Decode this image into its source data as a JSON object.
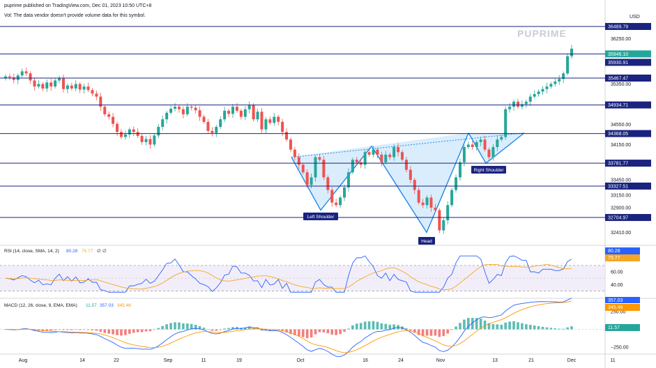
{
  "header": {
    "published": "puprime published on TradingView.com, Dec 01, 2023 10:50 UTC+8",
    "vol_note": "Vol: The data vendor doesn't provide volume data for this symbol.",
    "currency": "USD",
    "watermark": "PUPRIME"
  },
  "colors": {
    "bull": "#26a69a",
    "bear": "#ef5350",
    "level_line": "#1a237e",
    "pattern_fill": "#bbdefb",
    "pattern_line": "#1e88e5",
    "label_bg": "#1a237e",
    "rsi_line": "#2962ff",
    "rsi_ma": "#f5a623",
    "rsi_band": "#ede7f6",
    "macd_line": "#2962ff",
    "signal_line": "#ff9800",
    "hist_pos": "#26a69a",
    "hist_neg": "#ef5350",
    "price_badge": "#26a69a"
  },
  "price_axis_ticks": [
    "36250.00",
    "35350.00",
    "34550.00",
    "34150.00",
    "33450.00",
    "33150.00",
    "32900.00",
    "32410.00"
  ],
  "level_labels": [
    "36489.79",
    "35946.10",
    "35930.91",
    "35467.47",
    "34934.71",
    "34368.05",
    "33781.77",
    "33327.51",
    "32704.97"
  ],
  "time_axis": [
    "Aug",
    "14",
    "22",
    "Sep",
    "11",
    "19",
    "Oct",
    "16",
    "24",
    "Nov",
    "13",
    "21",
    "Dec",
    "11"
  ],
  "pattern_labels": {
    "left": "Left Shoulder",
    "head": "Head",
    "right": "Right Shoulder"
  },
  "rsi": {
    "title": "RSI (14, close, SMA, 14, 2)",
    "v1": "80.28",
    "v2": "75.77",
    "v3": "∅",
    "v4": "∅",
    "ticks": [
      "60.00",
      "40.00"
    ],
    "badge1": "80.28",
    "badge2": "75.77"
  },
  "macd": {
    "title": "MACD (12, 26, close, 9, EMA, EMA)",
    "v1": "11.57",
    "v2": "357.03",
    "v3": "345.46",
    "ticks": [
      "250.00",
      "−250.00"
    ],
    "badge_top": "357.03",
    "badge1": "345.46",
    "badge2": "11.57"
  },
  "chart_data": {
    "type": "candlestick",
    "symbol_currency": "USD",
    "horizontal_levels": [
      36489.79,
      35946.1,
      35467.47,
      34934.71,
      34368.05,
      33781.77,
      33327.51,
      32704.97
    ],
    "last_price": 35946.1,
    "secondary_price": 35930.91,
    "price_path": [
      35500,
      35480,
      35430,
      35520,
      35600,
      35560,
      35420,
      35300,
      35350,
      35260,
      35380,
      35300,
      35420,
      35460,
      35250,
      35320,
      35260,
      35350,
      35240,
      35300,
      35230,
      35160,
      35100,
      34900,
      34750,
      34700,
      34560,
      34400,
      34300,
      34350,
      34450,
      34400,
      34320,
      34200,
      34260,
      34150,
      34330,
      34500,
      34650,
      34780,
      34860,
      34900,
      34850,
      34750,
      34900,
      34880,
      34830,
      34700,
      34600,
      34420,
      34380,
      34500,
      34650,
      34820,
      34760,
      34900,
      34820,
      34700,
      34850,
      34930,
      34650,
      34800,
      34450,
      34650,
      34580,
      34700,
      34600,
      34400,
      34250,
      34050,
      33900,
      33750,
      33600,
      33350,
      33500,
      33900,
      33850,
      33500,
      33250,
      33000,
      32950,
      33100,
      33300,
      33600,
      33850,
      33800,
      33750,
      34000,
      33950,
      34050,
      33950,
      33800,
      33950,
      33900,
      34100,
      34000,
      33850,
      33650,
      33450,
      33250,
      33000,
      32950,
      33100,
      32900,
      32850,
      32450,
      32650,
      32950,
      33250,
      33500,
      33800,
      34100,
      34150,
      34100,
      34200,
      34250,
      34050,
      33900,
      34100,
      34250,
      34300,
      34850,
      34900,
      35000,
      34900,
      34950,
      35000,
      35100,
      35150,
      35200,
      35250,
      35300,
      35350,
      35400,
      35450,
      35560,
      35900,
      36050
    ],
    "pattern": {
      "type": "inverse head and shoulders",
      "points": [
        {
          "label": "Left Shoulder",
          "price": 32850
        },
        {
          "label": "Head",
          "price": 32410
        },
        {
          "label": "Right Shoulder",
          "price": 33780
        }
      ],
      "neckline": "rising trendline from ~33900 (early Oct) to ~34380 (mid Nov)"
    },
    "rsi": {
      "value": 80.28,
      "ma": 75.77,
      "bands": [
        30,
        70
      ]
    },
    "macd": {
      "macd": 357.03,
      "signal": 345.46,
      "histogram": 11.57
    }
  }
}
